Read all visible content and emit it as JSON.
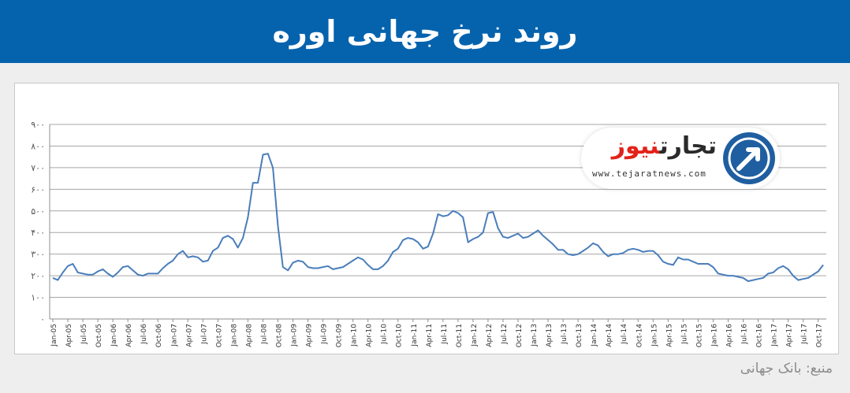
{
  "header": {
    "title": "روند نرخ جهانی اوره",
    "bg_color": "#0563ae"
  },
  "source_note": "منبع: بانک جهانی",
  "logo": {
    "brand_primary": "تجارت",
    "brand_accent": "نیوز",
    "url": "www.tejaratnews.com",
    "accent_color": "#e2231a",
    "circle_color": "#1f5ea0"
  },
  "chart_data": {
    "type": "line",
    "title": "",
    "xlabel": "",
    "ylabel": "",
    "ylim": [
      0,
      900
    ],
    "y_ticks": [
      "۰",
      "۱۰۰",
      "۲۰۰",
      "۳۰۰",
      "۴۰۰",
      "۵۰۰",
      "۶۰۰",
      "۷۰۰",
      "۸۰۰",
      "۹۰۰"
    ],
    "x_tick_labels": [
      "Jan-05",
      "Apr-05",
      "Jul-05",
      "Oct-05",
      "Jan-06",
      "Apr-06",
      "Jul-06",
      "Oct-06",
      "Jan-07",
      "Apr-07",
      "Jul-07",
      "Oct-07",
      "Jan-08",
      "Apr-08",
      "Jul-08",
      "Oct-08",
      "Jan-09",
      "Apr-09",
      "Jul-09",
      "Oct-09",
      "Jan-10",
      "Apr-10",
      "Jul-10",
      "Oct-10",
      "Jan-11",
      "Apr-11",
      "Jul-11",
      "Oct-11",
      "Jan-12",
      "Apr-12",
      "Jul-12",
      "Oct-12",
      "Jan-13",
      "Apr-13",
      "Jul-13",
      "Oct-13",
      "Jan-14",
      "Apr-14",
      "Jul-14",
      "Oct-14",
      "Jan-15",
      "Apr-15",
      "Jul-15",
      "Oct-15",
      "Jan-16",
      "Apr-16",
      "Jul-16",
      "Oct-16",
      "Jan-17",
      "Apr-17",
      "Jul-17",
      "Oct-17"
    ],
    "grid": true,
    "line_color": "#4a7ebb",
    "series": [
      {
        "values": [
          190,
          180,
          215,
          245,
          255,
          215,
          210,
          205,
          205,
          220,
          230,
          210,
          195,
          215,
          240,
          245,
          225,
          205,
          200,
          210,
          210,
          210,
          235,
          255,
          270,
          300,
          315,
          285,
          290,
          285,
          265,
          270,
          315,
          330,
          375,
          385,
          370,
          330,
          375,
          470,
          630,
          630,
          760,
          765,
          700,
          430,
          240,
          225,
          260,
          270,
          265,
          240,
          235,
          235,
          240,
          245,
          230,
          235,
          240,
          255,
          270,
          285,
          275,
          250,
          230,
          230,
          245,
          270,
          310,
          325,
          365,
          375,
          370,
          355,
          325,
          335,
          395,
          485,
          475,
          480,
          500,
          490,
          470,
          355,
          370,
          380,
          400,
          490,
          495,
          420,
          380,
          375,
          385,
          395,
          375,
          380,
          395,
          410,
          385,
          365,
          345,
          320,
          320,
          300,
          295,
          300,
          315,
          330,
          350,
          340,
          310,
          290,
          300,
          300,
          305,
          320,
          325,
          320,
          310,
          315,
          315,
          295,
          265,
          255,
          250,
          285,
          275,
          275,
          265,
          255,
          255,
          255,
          240,
          210,
          205,
          200,
          200,
          195,
          190,
          175,
          180,
          185,
          190,
          210,
          215,
          235,
          245,
          230,
          200,
          180,
          185,
          190,
          205,
          220,
          250
        ]
      }
    ]
  }
}
